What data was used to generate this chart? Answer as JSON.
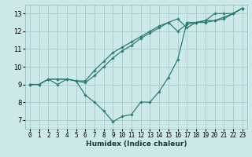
{
  "xlabel": "Humidex (Indice chaleur)",
  "bg_color": "#cce8e8",
  "line_color": "#2e7d72",
  "grid_color": "#aacfcf",
  "xlim": [
    -0.5,
    23.5
  ],
  "ylim": [
    6.5,
    13.5
  ],
  "xticks": [
    0,
    1,
    2,
    3,
    4,
    5,
    6,
    7,
    8,
    9,
    10,
    11,
    12,
    13,
    14,
    15,
    16,
    17,
    18,
    19,
    20,
    21,
    22,
    23
  ],
  "yticks": [
    7,
    8,
    9,
    10,
    11,
    12,
    13
  ],
  "line1_x": [
    0,
    1,
    2,
    3,
    4,
    5,
    6,
    7,
    8,
    9,
    10,
    11,
    12,
    13,
    14,
    15,
    16,
    17,
    18,
    19,
    20,
    21,
    22,
    23
  ],
  "line1_y": [
    9.0,
    9.0,
    9.3,
    9.0,
    9.3,
    9.2,
    8.4,
    8.0,
    7.5,
    6.9,
    7.2,
    7.3,
    8.0,
    8.0,
    8.6,
    9.4,
    10.4,
    12.5,
    12.5,
    12.6,
    13.0,
    13.0,
    13.0,
    13.3
  ],
  "line2_x": [
    0,
    1,
    2,
    3,
    4,
    5,
    6,
    7,
    8,
    9,
    10,
    11,
    12,
    13,
    14,
    15,
    16,
    17,
    18,
    19,
    20,
    21,
    22,
    23
  ],
  "line2_y": [
    9.0,
    9.0,
    9.3,
    9.3,
    9.3,
    9.2,
    9.2,
    9.8,
    10.3,
    10.8,
    11.1,
    11.4,
    11.7,
    12.0,
    12.3,
    12.5,
    12.7,
    12.2,
    12.5,
    12.6,
    12.6,
    12.7,
    13.0,
    13.3
  ],
  "line3_x": [
    0,
    1,
    2,
    3,
    4,
    5,
    6,
    7,
    8,
    9,
    10,
    11,
    12,
    13,
    14,
    15,
    16,
    17,
    18,
    19,
    20,
    21,
    22,
    23
  ],
  "line3_y": [
    9.0,
    9.0,
    9.3,
    9.3,
    9.3,
    9.2,
    9.1,
    9.5,
    10.0,
    10.5,
    10.9,
    11.2,
    11.6,
    11.9,
    12.2,
    12.5,
    12.0,
    12.4,
    12.5,
    12.5,
    12.6,
    12.8,
    13.0,
    13.3
  ],
  "xlabel_fontsize": 6.5,
  "tick_fontsize": 5.5
}
